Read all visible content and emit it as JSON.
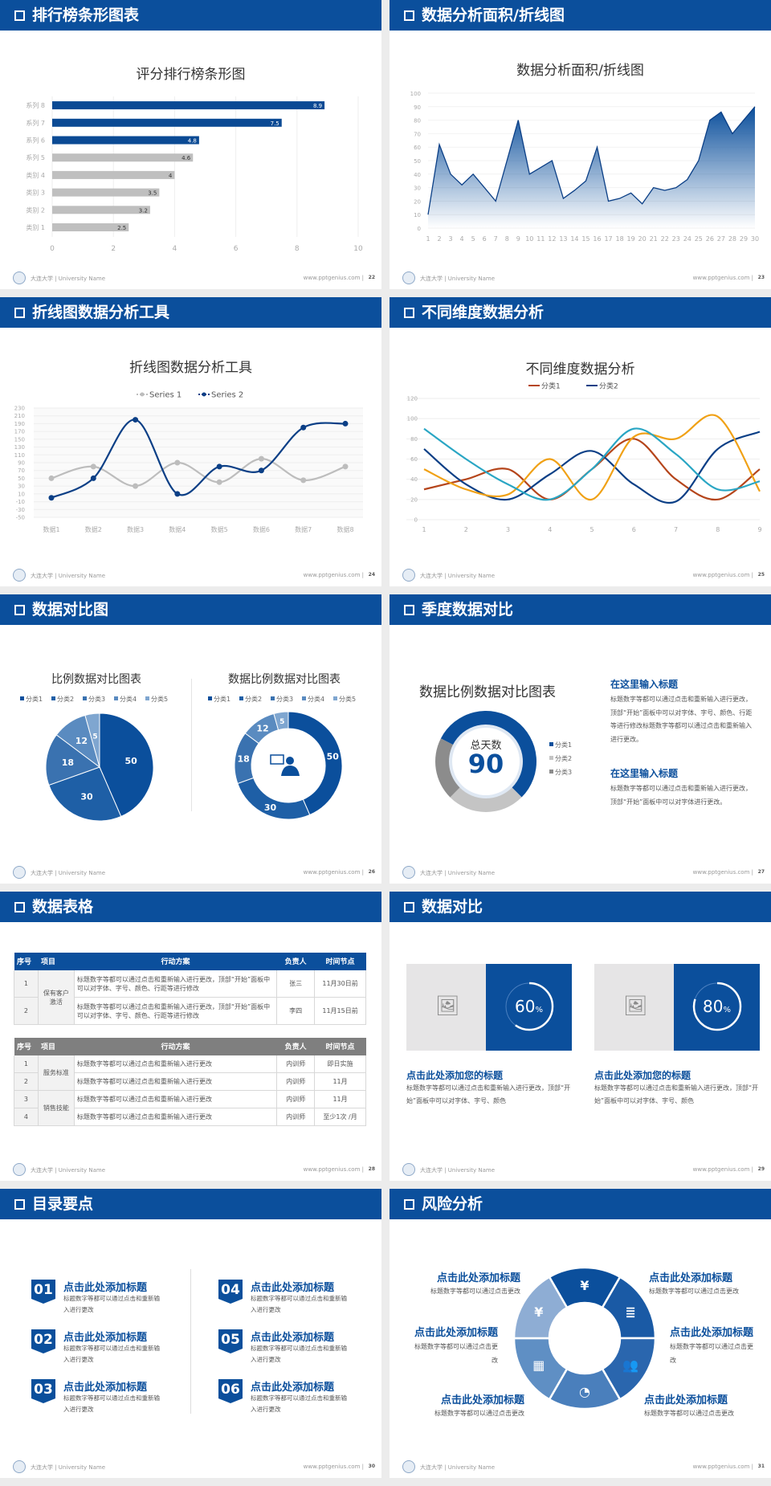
{
  "footer": {
    "university": "大连大学 | University Name",
    "url": "www.pptgenius.com",
    "separator": "|"
  },
  "colors": {
    "primary": "#0b4f9c",
    "grey": "#bfbfbf"
  },
  "slides": [
    {
      "title": "排行榜条形图表",
      "page": "22"
    },
    {
      "title": "数据分析面积/折线图",
      "page": "23"
    },
    {
      "title": "折线图数据分析工具",
      "page": "24"
    },
    {
      "title": "不同维度数据分析",
      "page": "25"
    },
    {
      "title": "数据对比图",
      "page": "26"
    },
    {
      "title": "季度数据对比",
      "page": "27"
    },
    {
      "title": "数据表格",
      "page": "28"
    },
    {
      "title": "数据对比",
      "page": "29"
    },
    {
      "title": "目录要点",
      "page": "30"
    },
    {
      "title": "风险分析",
      "page": "31"
    }
  ],
  "chart_data": [
    {
      "type": "bar",
      "orientation": "horizontal",
      "title": "评分排行榜条形图",
      "categories": [
        "类别 1",
        "类别 2",
        "类别 3",
        "类别 4",
        "系列 5",
        "系列 6",
        "系列 7",
        "系列 8"
      ],
      "values": [
        2.5,
        3.2,
        3.5,
        4,
        4.6,
        4.8,
        7.5,
        8.9
      ],
      "highlight_colors": [
        "#bfbfbf",
        "#bfbfbf",
        "#bfbfbf",
        "#bfbfbf",
        "#bfbfbf",
        "#0b4a94",
        "#0b4a94",
        "#0b4a94"
      ],
      "xlim": [
        0,
        10
      ],
      "xticks": [
        "0",
        "2",
        "4",
        "6",
        "8",
        "10"
      ],
      "data_labels": true,
      "grid": true
    },
    {
      "type": "area",
      "title": "数据分析面积/折线图",
      "x": [
        1,
        2,
        3,
        4,
        5,
        6,
        7,
        8,
        9,
        10,
        11,
        12,
        13,
        14,
        15,
        16,
        17,
        18,
        19,
        20,
        21,
        22,
        23,
        24,
        25,
        26,
        27,
        28,
        29,
        30
      ],
      "values": [
        10,
        62,
        40,
        32,
        40,
        30,
        20,
        50,
        80,
        40,
        45,
        50,
        22,
        28,
        35,
        60,
        20,
        22,
        26,
        18,
        30,
        28,
        30,
        36,
        50,
        80,
        86,
        70,
        80,
        90
      ],
      "ylim": [
        0,
        100
      ],
      "yticks": [
        "0",
        "10",
        "20",
        "30",
        "40",
        "50",
        "60",
        "70",
        "80",
        "90",
        "100"
      ],
      "grid": true
    },
    {
      "type": "line",
      "title": "折线图数据分析工具",
      "smooth": true,
      "legend": "top",
      "categories": [
        "数据1",
        "数据2",
        "数据3",
        "数据4",
        "数据5",
        "数据6",
        "数据7",
        "数据8"
      ],
      "series": [
        {
          "name": "Series 1",
          "values": [
            50,
            80,
            30,
            90,
            40,
            100,
            45,
            80
          ],
          "color": "#bdbdbd"
        },
        {
          "name": "Series 2",
          "values": [
            0,
            50,
            200,
            10,
            80,
            70,
            180,
            190
          ],
          "color": "#0b3f86"
        }
      ],
      "ylim": [
        -50,
        230
      ],
      "yticks": [
        "-50",
        "-30",
        "-10",
        "10",
        "30",
        "50",
        "70",
        "90",
        "110",
        "130",
        "150",
        "170",
        "190",
        "210",
        "230"
      ]
    },
    {
      "type": "line",
      "title": "不同维度数据分析",
      "smooth": true,
      "legend": "top",
      "categories": [
        "1",
        "2",
        "3",
        "4",
        "5",
        "6",
        "7",
        "8",
        "9"
      ],
      "series": [
        {
          "name": "分类1",
          "values": [
            30,
            40,
            50,
            20,
            50,
            80,
            40,
            20,
            50
          ],
          "color": "#b5451b"
        },
        {
          "name": "分类2",
          "values": [
            70,
            35,
            20,
            45,
            68,
            35,
            18,
            70,
            87
          ],
          "color": "#0b3f86"
        },
        {
          "values": [
            50,
            30,
            25,
            60,
            20,
            82,
            80,
            102,
            28
          ],
          "color": "#f0a116"
        },
        {
          "values": [
            90,
            60,
            35,
            20,
            50,
            90,
            65,
            30,
            38
          ],
          "color": "#2aa6c4"
        }
      ],
      "ylim": [
        0,
        120
      ],
      "yticks": [
        "0",
        "20",
        "40",
        "60",
        "80",
        "100",
        "120"
      ],
      "grid": true
    },
    {
      "type": "pie",
      "title": "比例数据对比图表",
      "categories": [
        "分类1",
        "分类2",
        "分类3",
        "分类4",
        "分类5"
      ],
      "values": [
        50,
        30,
        18,
        12,
        5
      ],
      "colors": [
        "#0b4f9c",
        "#1e5fa6",
        "#3a72b0",
        "#5a8bc0",
        "#7fa6d0"
      ],
      "legend": "top"
    },
    {
      "type": "pie",
      "variant": "donut",
      "title": "数据比例数据对比图表",
      "categories": [
        "分类1",
        "分类2",
        "分类3",
        "分类4",
        "分类5"
      ],
      "values": [
        50,
        30,
        18,
        12,
        5
      ],
      "colors": [
        "#0b4f9c",
        "#1e5fa6",
        "#3a72b0",
        "#5a8bc0",
        "#7fa6d0"
      ],
      "legend": "top",
      "center_icon": "presenter-icon"
    },
    {
      "type": "pie",
      "variant": "donut",
      "title": "数据比例数据对比图表",
      "center_label": "总天数",
      "center_value": "90",
      "categories": [
        "分类1",
        "分类2",
        "分类3"
      ],
      "values": [
        55,
        25,
        20
      ],
      "colors": [
        "#0b4f9c",
        "#c4c4c4",
        "#8c8c8c"
      ],
      "legend": "right"
    }
  ],
  "quarter": {
    "blocks": [
      {
        "heading": "在这里输入标题",
        "text": "标题数字等都可以通过点击和重新输入进行更改，顶部“开始”面板中可以对字体、字号、颜色、行距等进行修改标题数字等都可以通过点击和重新输入进行更改。"
      },
      {
        "heading": "在这里输入标题",
        "text": "标题数字等都可以通过点击和重新输入进行更改，顶部“开始”面板中可以对字体进行更改。"
      }
    ]
  },
  "tables": [
    {
      "header": [
        "序号",
        "项目",
        "行动方案",
        "负责人",
        "时间节点"
      ],
      "header_color": "#0b4f9c",
      "groups": [
        {
          "item": "保有客户激活",
          "rows": [
            [
              "1",
              "标题数字等都可以通过点击和重新输入进行更改，顶部“开始”面板中可以对字体、字号、颜色、行距等进行修改",
              "张三",
              "11月30日前"
            ],
            [
              "2",
              "标题数字等都可以通过点击和重新输入进行更改，顶部“开始”面板中可以对字体、字号、颜色、行距等进行修改",
              "李四",
              "11月15日前"
            ]
          ]
        }
      ]
    },
    {
      "header": [
        "序号",
        "项目",
        "行动方案",
        "负责人",
        "时间节点"
      ],
      "header_color": "#7f7f7f",
      "groups": [
        {
          "item": "服务标准",
          "rows": [
            [
              "1",
              "标题数字等都可以通过点击和重新输入进行更改",
              "内训师",
              "即日实施"
            ],
            [
              "2",
              "标题数字等都可以通过点击和重新输入进行更改",
              "内训师",
              "11月"
            ]
          ]
        },
        {
          "item": "销售技能",
          "rows": [
            [
              "3",
              "标题数字等都可以通过点击和重新输入进行更改",
              "内训师",
              "11月"
            ],
            [
              "4",
              "标题数字等都可以通过点击和重新输入进行更改",
              "内训师",
              "至少1次 /月"
            ]
          ]
        }
      ]
    }
  ],
  "compare": [
    {
      "percent": 60,
      "label": "60",
      "unit": "%",
      "heading": "点击此处添加您的标题",
      "text": "标题数字等都可以通过点击和重新输入进行更改，顶部“开始”面板中可以对字体、字号、颜色"
    },
    {
      "percent": 80,
      "label": "80",
      "unit": "%",
      "heading": "点击此处添加您的标题",
      "text": "标题数字等都可以通过点击和重新输入进行更改，顶部“开始”面板中可以对字体、字号、颜色"
    }
  ],
  "toc": [
    {
      "num": "01",
      "heading": "点击此处添加标题",
      "text": "标题数字等都可以通过点击和重新输入进行更改"
    },
    {
      "num": "02",
      "heading": "点击此处添加标题",
      "text": "标题数字等都可以通过点击和重新输入进行更改"
    },
    {
      "num": "03",
      "heading": "点击此处添加标题",
      "text": "标题数字等都可以通过点击和重新输入进行更改"
    },
    {
      "num": "04",
      "heading": "点击此处添加标题",
      "text": "标题数字等都可以通过点击和重新输入进行更改"
    },
    {
      "num": "05",
      "heading": "点击此处添加标题",
      "text": "标题数字等都可以通过点击和重新输入进行更改"
    },
    {
      "num": "06",
      "heading": "点击此处添加标题",
      "text": "标题数字等都可以通过点击和重新输入进行更改"
    }
  ],
  "risk": {
    "items": [
      {
        "heading": "点击此处添加标题",
        "text": "标题数字等都可以通过点击更改",
        "icon": "money-bag-icon"
      },
      {
        "heading": "点击此处添加标题",
        "text": "标题数字等都可以通过点击更改",
        "icon": "coins-icon"
      },
      {
        "heading": "点击此处添加标题",
        "text": "标题数字等都可以通过点击更改",
        "icon": "people-icon"
      },
      {
        "heading": "点击此处添加标题",
        "text": "标题数字等都可以通过点击更改",
        "icon": "pie-chart-icon"
      },
      {
        "heading": "点击此处添加标题",
        "text": "标题数字等都可以通过点击更改",
        "icon": "building-icon"
      },
      {
        "heading": "点击此处添加标题",
        "text": "标题数字等都可以通过点击更改",
        "icon": "yen-hand-icon"
      }
    ]
  }
}
